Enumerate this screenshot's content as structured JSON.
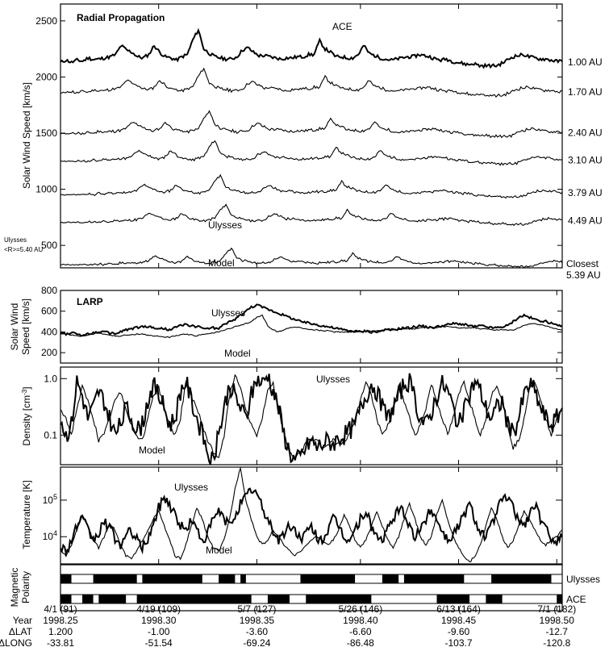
{
  "chart_data": [
    {
      "type": "line",
      "title": "Radial Propagation",
      "ylabel": "Solar Wind Speed [km/s]",
      "ylim": [
        300,
        2650
      ],
      "yticks": [
        500,
        1000,
        1500,
        2000,
        2500
      ],
      "xlim": [
        91,
        183
      ],
      "side_note": "Ulysses <R>=5.40 AU",
      "annotations": [
        "ACE",
        "Ulysses",
        "Model"
      ],
      "series": [
        {
          "name": "1.00 AU",
          "offset": 2000,
          "values": [
            130,
            150,
            130,
            150,
            140,
            170,
            155,
            160,
            170,
            180,
            200,
            280,
            240,
            220,
            180,
            170,
            200,
            280,
            220,
            180,
            170,
            150,
            180,
            200,
            330,
            420,
            250,
            210,
            180,
            170,
            160,
            160,
            180,
            240,
            260,
            220,
            190,
            190,
            180,
            170,
            160,
            170,
            170,
            180,
            180,
            200,
            200,
            320,
            250,
            220,
            180,
            180,
            170,
            170,
            200,
            280,
            210,
            190,
            170,
            160,
            150,
            160,
            170,
            180,
            180,
            200,
            190,
            180,
            160,
            150,
            160,
            140,
            130,
            120,
            110,
            120,
            100,
            100,
            100,
            100,
            120,
            150,
            180,
            190,
            200,
            180,
            170,
            160,
            160,
            150,
            140,
            140
          ]
        },
        {
          "name": "1.70 AU",
          "offset": 1500
        },
        {
          "name": "2.40 AU",
          "offset": 1140
        },
        {
          "name": "3.10 AU",
          "offset": 900
        },
        {
          "name": "3.79 AU",
          "offset": 610
        },
        {
          "name": "4.49 AU",
          "offset": 370
        },
        {
          "name": "Closest 5.39 AU",
          "offset": 0
        }
      ]
    },
    {
      "type": "line",
      "title": "LARP",
      "ylabel": "Solar Wind Speed [km/s]",
      "ylim": [
        100,
        800
      ],
      "yticks": [
        200,
        400,
        600,
        800
      ],
      "annotations": [
        "Ulysses",
        "Model"
      ],
      "series": [
        {
          "name": "Ulysses",
          "values": [
            390,
            380,
            390,
            380,
            370,
            380,
            390,
            400,
            400,
            390,
            380,
            400,
            420,
            430,
            440,
            450,
            450,
            440,
            430,
            430,
            420,
            440,
            460,
            470,
            460,
            450,
            440,
            430,
            440,
            430,
            470,
            500,
            520,
            560,
            600,
            640,
            660,
            640,
            620,
            600,
            580,
            560,
            540,
            520,
            500,
            490,
            480,
            470,
            460,
            450,
            440,
            430,
            420,
            410,
            410,
            400,
            410,
            400,
            400,
            410,
            420,
            420,
            430,
            440,
            440,
            450,
            460,
            450,
            440,
            450,
            460,
            470,
            480,
            480,
            470,
            460,
            450,
            460,
            450,
            440,
            440,
            450,
            460,
            500,
            540,
            560,
            540,
            520,
            510,
            500,
            480,
            460,
            460
          ]
        },
        {
          "name": "Model",
          "values": [
            380,
            380,
            370,
            360,
            360,
            370,
            380,
            390,
            380,
            370,
            360,
            360,
            370,
            370,
            380,
            380,
            370,
            360,
            360,
            350,
            350,
            360,
            370,
            380,
            370,
            360,
            380,
            380,
            390,
            400,
            420,
            430,
            450,
            460,
            480,
            500,
            540,
            560,
            460,
            420,
            400,
            420,
            440,
            450,
            440,
            430,
            420,
            420,
            410,
            410,
            400,
            400,
            400,
            400,
            400,
            400,
            410,
            410,
            410,
            420,
            420,
            420,
            420,
            430,
            430,
            430,
            440,
            440,
            440,
            440,
            450,
            450,
            450,
            440,
            440,
            440,
            440,
            430,
            430,
            420,
            420,
            420,
            420,
            420,
            440,
            460,
            480,
            480,
            470,
            460,
            440,
            430,
            420
          ]
        }
      ]
    },
    {
      "type": "line",
      "ylabel": "Density [cm-3]",
      "yscale": "log",
      "ylim": [
        0.03,
        1.6
      ],
      "yticks": [
        0.1,
        1.0
      ],
      "annotations": [
        "Ulysses",
        "Model"
      ],
      "series": [
        {
          "name": "Ulysses",
          "values": [
            0.2,
            0.1,
            0.15,
            0.9,
            0.5,
            0.2,
            0.3,
            0.6,
            0.4,
            0.2,
            0.1,
            0.15,
            0.3,
            0.2,
            0.12,
            0.15,
            0.4,
            0.8,
            0.5,
            0.3,
            0.15,
            0.2,
            0.6,
            0.9,
            0.4,
            0.2,
            0.1,
            0.05,
            0.035,
            0.1,
            0.3,
            0.8,
            0.5,
            0.3,
            0.2,
            0.5,
            1.0,
            0.8,
            1.2,
            0.6,
            0.3,
            0.1,
            0.05,
            0.035,
            0.04,
            0.06,
            0.08,
            0.06,
            0.07,
            0.08,
            0.07,
            0.09,
            0.1,
            0.12,
            0.15,
            0.3,
            0.5,
            0.8,
            0.6,
            0.3,
            0.2,
            0.3,
            0.5,
            0.8,
            0.9,
            0.4,
            0.2,
            0.15,
            0.25,
            0.5,
            0.8,
            0.6,
            0.3,
            0.15,
            0.25,
            0.5,
            0.9,
            0.6,
            0.3,
            0.2,
            0.3,
            0.4,
            0.15,
            0.1,
            0.2,
            0.5,
            0.8,
            0.6,
            0.3,
            0.2,
            0.15,
            0.2,
            0.3
          ]
        },
        {
          "name": "Model",
          "values": [
            0.3,
            0.2,
            0.1,
            0.3,
            0.7,
            0.4,
            0.2,
            0.08,
            0.1,
            0.2,
            0.4,
            0.6,
            0.3,
            0.15,
            0.1,
            0.08,
            0.2,
            0.5,
            0.7,
            0.3,
            0.15,
            0.1,
            0.2,
            0.9,
            0.5,
            0.3,
            0.15,
            0.08,
            0.05,
            0.04,
            0.1,
            0.5,
            1.2,
            0.7,
            0.3,
            0.15,
            0.1,
            0.2,
            0.6,
            0.8,
            0.3,
            0.1,
            0.05,
            0.04,
            0.05,
            0.07,
            0.09,
            0.08,
            0.06,
            0.07,
            0.08,
            0.07,
            0.08,
            0.1,
            0.2,
            0.4,
            0.9,
            0.5,
            0.2,
            0.1,
            0.15,
            0.3,
            0.7,
            0.4,
            0.2,
            0.1,
            0.15,
            0.3,
            0.8,
            0.4,
            0.2,
            0.1,
            0.2,
            0.5,
            0.9,
            0.4,
            0.2,
            0.1,
            0.2,
            0.5,
            0.8,
            0.4,
            0.15,
            0.06,
            0.08,
            0.2,
            0.7,
            0.9,
            0.4,
            0.2,
            0.1,
            0.2,
            0.3
          ]
        }
      ]
    },
    {
      "type": "line",
      "ylabel": "Temperature [K]",
      "yscale": "log",
      "ylim": [
        1800,
        800000
      ],
      "yticks": [
        10000,
        100000
      ],
      "annotations": [
        "Ulysses",
        "Model"
      ],
      "series": [
        {
          "name": "Ulysses",
          "values": [
            6000,
            4000,
            8000,
            20000,
            30000,
            15000,
            8000,
            12000,
            25000,
            18000,
            9000,
            6000,
            10000,
            15000,
            8000,
            5000,
            9000,
            20000,
            60000,
            120000,
            80000,
            40000,
            20000,
            15000,
            30000,
            15000,
            8000,
            12000,
            30000,
            50000,
            30000,
            20000,
            40000,
            80000,
            120000,
            200000,
            150000,
            60000,
            30000,
            15000,
            8000,
            12000,
            20000,
            15000,
            9000,
            12000,
            18000,
            10000,
            8000,
            15000,
            30000,
            20000,
            10000,
            8000,
            15000,
            30000,
            50000,
            20000,
            10000,
            8000,
            15000,
            30000,
            60000,
            40000,
            20000,
            10000,
            15000,
            30000,
            60000,
            30000,
            15000,
            8000,
            12000,
            20000,
            40000,
            80000,
            30000,
            15000,
            10000,
            20000,
            50000,
            100000,
            120000,
            60000,
            30000,
            20000,
            40000,
            80000,
            30000,
            15000,
            10000,
            8000,
            10000
          ]
        },
        {
          "name": "Model",
          "values": [
            4000,
            3000,
            6000,
            15000,
            40000,
            20000,
            8000,
            5000,
            10000,
            25000,
            15000,
            6000,
            3000,
            2500,
            4000,
            8000,
            15000,
            30000,
            50000,
            20000,
            8000,
            3000,
            2500,
            6000,
            20000,
            60000,
            30000,
            10000,
            5000,
            4000,
            8000,
            30000,
            200000,
            800000,
            100000,
            30000,
            10000,
            6000,
            8000,
            15000,
            10000,
            6000,
            4000,
            3000,
            4000,
            6000,
            8000,
            10000,
            8000,
            6000,
            8000,
            15000,
            40000,
            20000,
            8000,
            5000,
            8000,
            20000,
            50000,
            20000,
            8000,
            5000,
            10000,
            30000,
            80000,
            30000,
            10000,
            6000,
            10000,
            40000,
            100000,
            30000,
            10000,
            5000,
            3000,
            2000,
            3000,
            6000,
            20000,
            60000,
            30000,
            10000,
            5000,
            8000,
            20000,
            50000,
            30000,
            15000,
            8000,
            6000,
            8000,
            10000,
            15000
          ]
        }
      ]
    },
    {
      "type": "heatmap",
      "ylabel": "Magnetic Polarity",
      "rows": [
        {
          "name": "Ulysses",
          "bands": [
            [
              91,
              93,
              1
            ],
            [
              93,
              97,
              0
            ],
            [
              97,
              105,
              1
            ],
            [
              105,
              106,
              0
            ],
            [
              106,
              117,
              1
            ],
            [
              117,
              120,
              0
            ],
            [
              120,
              123,
              1
            ],
            [
              123,
              124,
              0
            ],
            [
              124,
              125,
              1
            ],
            [
              125,
              135,
              0
            ],
            [
              135,
              145,
              1
            ],
            [
              145,
              150,
              0
            ],
            [
              150,
              153,
              1
            ],
            [
              153,
              154,
              0
            ],
            [
              154,
              165,
              1
            ],
            [
              165,
              170,
              0
            ],
            [
              170,
              181,
              1
            ],
            [
              181,
              183,
              0
            ]
          ]
        },
        {
          "name": "ACE",
          "bands": [
            [
              91,
              93,
              1
            ],
            [
              93,
              95,
              0
            ],
            [
              95,
              97,
              1
            ],
            [
              97,
              98,
              0
            ],
            [
              98,
              103,
              1
            ],
            [
              103,
              105,
              0
            ],
            [
              105,
              126,
              1
            ],
            [
              126,
              129,
              0
            ],
            [
              129,
              133,
              1
            ],
            [
              133,
              136,
              0
            ],
            [
              136,
              148,
              1
            ],
            [
              148,
              160,
              0
            ],
            [
              160,
              166,
              1
            ],
            [
              166,
              169,
              0
            ],
            [
              169,
              172,
              1
            ],
            [
              172,
              182,
              0
            ],
            [
              182,
              183,
              1
            ]
          ]
        }
      ]
    }
  ],
  "x_axis": {
    "row_labels": {
      "year": "Year",
      "dlat": "ΔLAT",
      "dlong": "ΔLONG"
    },
    "ticks": [
      {
        "day": 91,
        "date": "4/1 (91)",
        "year": "1998.25",
        "dlat": "1.200",
        "dlong": "-33.81"
      },
      {
        "day": 109,
        "date": "4/19 (109)",
        "year": "1998.30",
        "dlat": "-1.00",
        "dlong": "-51.54"
      },
      {
        "day": 127,
        "date": "5/7 (127)",
        "year": "1998.35",
        "dlat": "-3.60",
        "dlong": "-69.24"
      },
      {
        "day": 146,
        "date": "5/26 (146)",
        "year": "1998.40",
        "dlat": "-6.60",
        "dlong": "-86.48"
      },
      {
        "day": 164,
        "date": "6/13 (164)",
        "year": "1998.45",
        "dlat": "-9.60",
        "dlong": "-103.7"
      },
      {
        "day": 182,
        "date": "7/1 (182)",
        "year": "1998.50",
        "dlat": "-12.7",
        "dlong": "-120.8"
      }
    ]
  }
}
